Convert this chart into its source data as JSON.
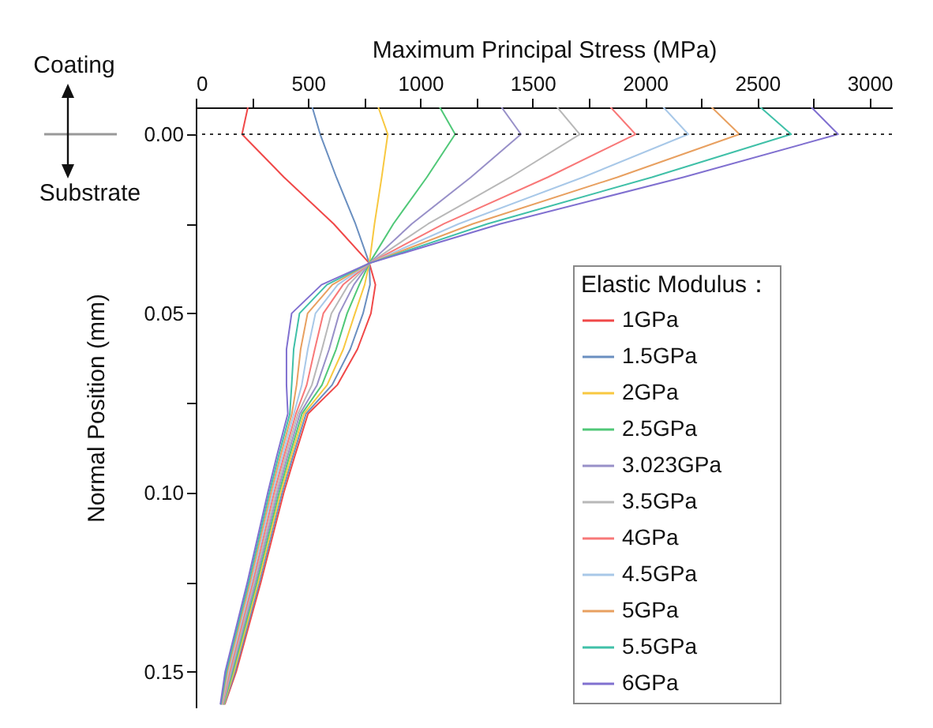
{
  "chart_data": {
    "type": "line",
    "xlabel": "Maximum Principal Stress (MPa)",
    "ylabel": "Normal Position (mm)",
    "legend_title": "Elastic Modulus：",
    "legend": "bottom right",
    "annotations": [
      "Coating",
      "Substrate"
    ],
    "xlim": [
      0,
      3100
    ],
    "xticks": [
      0,
      {
        "value": 250,
        "label": null
      },
      500,
      {
        "value": 750,
        "label": null
      },
      1000,
      {
        "value": 1250,
        "label": null
      },
      1500,
      {
        "value": 1750,
        "label": null
      },
      2000,
      {
        "value": 2250,
        "label": null
      },
      2500,
      {
        "value": 2750,
        "label": null
      },
      3000
    ],
    "ylim": [
      0.16,
      -0.0075
    ],
    "yticks": [
      {
        "value": 0,
        "label": "0.00"
      },
      {
        "value": 0.025,
        "label": null
      },
      {
        "value": 0.05,
        "label": "0.05"
      },
      {
        "value": 0.075,
        "label": null
      },
      {
        "value": 0.1,
        "label": "0.10"
      },
      {
        "value": 0.125,
        "label": null
      },
      {
        "value": 0.15,
        "label": "0.15"
      }
    ],
    "ref_lines": [
      {
        "axis": "y",
        "value": 0,
        "line_style": "dotted",
        "color": "#333333"
      }
    ],
    "series": [
      {
        "name": "1GPa",
        "color": "#f04848",
        "x": [
          232,
          206,
          393,
          614,
          773,
          800,
          780,
          720,
          630,
          500,
          440,
          392,
          290,
          180,
          130
        ],
        "values": [
          -0.0075,
          0,
          0.012,
          0.025,
          0.036,
          0.042,
          0.05,
          0.06,
          0.07,
          0.078,
          0.09,
          0.1,
          0.125,
          0.15,
          0.159
        ]
      },
      {
        "name": "1.5GPa",
        "color": "#6a8fc0",
        "x": [
          519,
          554,
          626,
          711,
          773,
          776,
          745,
          688,
          607,
          491,
          432,
          385,
          284,
          175,
          128
        ],
        "values": [
          -0.0075,
          0,
          0.012,
          0.025,
          0.036,
          0.042,
          0.05,
          0.06,
          0.07,
          0.078,
          0.09,
          0.1,
          0.125,
          0.15,
          0.159
        ]
      },
      {
        "name": "2GPa",
        "color": "#f8c840",
        "x": [
          813,
          855,
          828,
          796,
          773,
          752,
          709,
          657,
          585,
          482,
          424,
          378,
          278,
          170,
          126
        ],
        "values": [
          -0.0075,
          0,
          0.012,
          0.025,
          0.036,
          0.042,
          0.05,
          0.06,
          0.07,
          0.078,
          0.09,
          0.1,
          0.125,
          0.15,
          0.159
        ]
      },
      {
        "name": "2.5GPa",
        "color": "#50c878",
        "x": [
          1087,
          1155,
          1029,
          880,
          773,
          728,
          674,
          625,
          562,
          473,
          416,
          371,
          272,
          165,
          124
        ],
        "values": [
          -0.0075,
          0,
          0.012,
          0.025,
          0.036,
          0.042,
          0.05,
          0.06,
          0.07,
          0.078,
          0.09,
          0.1,
          0.125,
          0.15,
          0.159
        ]
      },
      {
        "name": "3.023GPa",
        "color": "#9890c8",
        "x": [
          1362,
          1448,
          1225,
          962,
          773,
          704,
          639,
          594,
          540,
          464,
          408,
          364,
          266,
          160,
          122
        ],
        "values": [
          -0.0075,
          0,
          0.012,
          0.025,
          0.036,
          0.042,
          0.05,
          0.06,
          0.07,
          0.078,
          0.09,
          0.1,
          0.125,
          0.15,
          0.159
        ]
      },
      {
        "name": "3.5GPa",
        "color": "#b8b8b8",
        "x": [
          1610,
          1710,
          1401,
          1035,
          773,
          680,
          604,
          562,
          517,
          455,
          400,
          357,
          260,
          156,
          120
        ],
        "values": [
          -0.0075,
          0,
          0.012,
          0.025,
          0.036,
          0.042,
          0.05,
          0.06,
          0.07,
          0.078,
          0.09,
          0.1,
          0.125,
          0.15,
          0.159
        ]
      },
      {
        "name": "4GPa",
        "color": "#f87878",
        "x": [
          1848,
          1958,
          1567,
          1105,
          773,
          656,
          568,
          530,
          494,
          446,
          392,
          349,
          254,
          151,
          118
        ],
        "values": [
          -0.0075,
          0,
          0.012,
          0.025,
          0.036,
          0.042,
          0.05,
          0.06,
          0.07,
          0.078,
          0.09,
          0.1,
          0.125,
          0.15,
          0.159
        ]
      },
      {
        "name": "4.5GPa",
        "color": "#a8c8e8",
        "x": [
          2083,
          2193,
          1724,
          1171,
          773,
          632,
          533,
          499,
          472,
          437,
          384,
          342,
          248,
          146,
          116
        ],
        "values": [
          -0.0075,
          0,
          0.012,
          0.025,
          0.036,
          0.042,
          0.05,
          0.06,
          0.07,
          0.078,
          0.09,
          0.1,
          0.125,
          0.15,
          0.159
        ]
      },
      {
        "name": "5GPa",
        "color": "#e8a060",
        "x": [
          2298,
          2421,
          1877,
          1234,
          773,
          608,
          498,
          467,
          449,
          428,
          376,
          335,
          242,
          141,
          114
        ],
        "values": [
          -0.0075,
          0,
          0.012,
          0.025,
          0.036,
          0.042,
          0.05,
          0.06,
          0.07,
          0.078,
          0.09,
          0.1,
          0.125,
          0.15,
          0.159
        ]
      },
      {
        "name": "5.5GPa",
        "color": "#40c0a8",
        "x": [
          2515,
          2651,
          2031,
          1299,
          773,
          584,
          462,
          436,
          427,
          419,
          368,
          328,
          236,
          136,
          112
        ],
        "values": [
          -0.0075,
          0,
          0.012,
          0.025,
          0.036,
          0.042,
          0.05,
          0.06,
          0.07,
          0.078,
          0.09,
          0.1,
          0.125,
          0.15,
          0.159
        ]
      },
      {
        "name": "6GPa",
        "color": "#8070d0",
        "x": [
          2742,
          2860,
          2171,
          1357,
          773,
          560,
          427,
          404,
          404,
          410,
          360,
          321,
          230,
          131,
          110
        ],
        "values": [
          -0.0075,
          0,
          0.012,
          0.025,
          0.036,
          0.042,
          0.05,
          0.06,
          0.07,
          0.078,
          0.09,
          0.1,
          0.125,
          0.15,
          0.159
        ]
      }
    ]
  }
}
